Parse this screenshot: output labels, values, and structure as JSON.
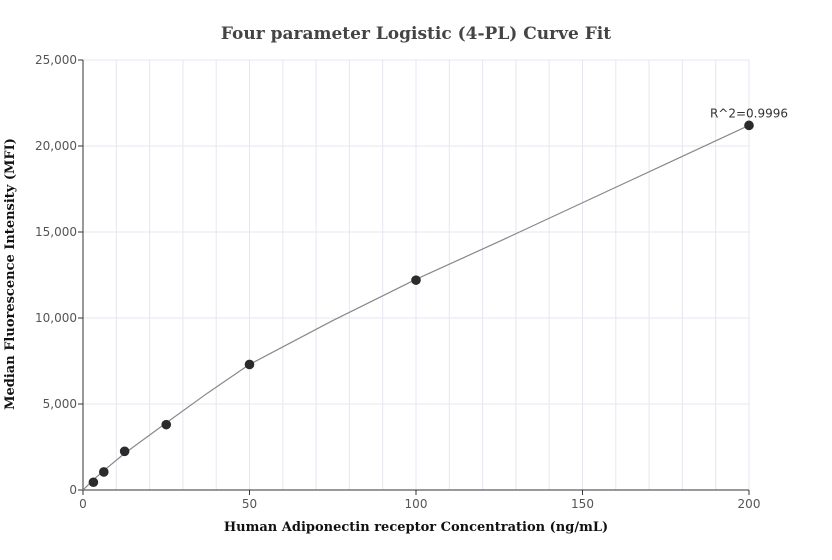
{
  "chart_data": {
    "type": "scatter",
    "title": "Four parameter Logistic (4-PL) Curve Fit",
    "xlabel": "Human Adiponectin receptor Concentration (ng/mL)",
    "ylabel": "Median Fluorescence Intensity (MFI)",
    "xlim": [
      0,
      200
    ],
    "ylim": [
      0,
      25000
    ],
    "x_ticks": [
      0,
      50,
      100,
      150,
      200
    ],
    "x_tick_labels": [
      "0",
      "50",
      "100",
      "150",
      "200"
    ],
    "y_ticks": [
      0,
      5000,
      10000,
      15000,
      20000,
      25000
    ],
    "y_tick_labels": [
      "0",
      "5,000",
      "10,000",
      "15,000",
      "20,000",
      "25,000"
    ],
    "grid": true,
    "points": [
      {
        "x": 3.125,
        "y": 450
      },
      {
        "x": 6.25,
        "y": 1050
      },
      {
        "x": 12.5,
        "y": 2250
      },
      {
        "x": 25,
        "y": 3800
      },
      {
        "x": 50,
        "y": 7300
      },
      {
        "x": 100,
        "y": 12200
      },
      {
        "x": 200,
        "y": 21200
      }
    ],
    "fit_curve": {
      "x": [
        0,
        3.125,
        6.25,
        12.5,
        25,
        37.5,
        50,
        75,
        100,
        125,
        150,
        175,
        200
      ],
      "y": [
        0,
        600,
        1130,
        2130,
        3900,
        5650,
        7300,
        9850,
        12250,
        14450,
        16700,
        18950,
        21200
      ]
    },
    "annotation": "R^2=0.9996",
    "colors": {
      "points": "#2b2b2b",
      "curve": "#888888",
      "grid": "#e6e6f0",
      "axis": "#333333"
    }
  }
}
